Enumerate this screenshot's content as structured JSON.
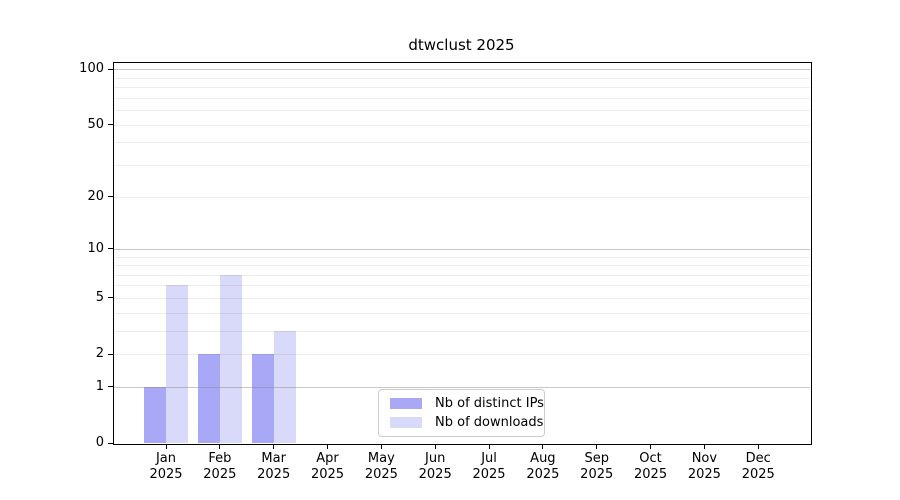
{
  "title": "dtwclust 2025",
  "colors": {
    "axis": "#000000",
    "background": "#ffffff",
    "grid_major": "#c6c6c6",
    "grid_minor": "#ececec",
    "legend_border": "#cccccc",
    "distinct_ips_bar": "#a8a8f6",
    "downloads_bar": "#d9d9fa"
  },
  "chart_data": {
    "type": "bar",
    "title": "dtwclust 2025",
    "categories": [
      "Jan 2025",
      "Feb 2025",
      "Mar 2025",
      "Apr 2025",
      "May 2025",
      "Jun 2025",
      "Jul 2025",
      "Aug 2025",
      "Sep 2025",
      "Oct 2025",
      "Nov 2025",
      "Dec 2025"
    ],
    "x_tick_months": [
      "Jan",
      "Feb",
      "Mar",
      "Apr",
      "May",
      "Jun",
      "Jul",
      "Aug",
      "Sep",
      "Oct",
      "Nov",
      "Dec"
    ],
    "x_tick_year": "2025",
    "series": [
      {
        "name": "Nb of distinct IPs",
        "color": "#a8a8f6",
        "values": [
          1,
          2,
          2,
          0,
          0,
          0,
          0,
          0,
          0,
          0,
          0,
          0
        ]
      },
      {
        "name": "Nb of downloads",
        "color": "#d9d9fa",
        "values": [
          6,
          7,
          3,
          0,
          0,
          0,
          0,
          0,
          0,
          0,
          0,
          0
        ]
      }
    ],
    "xlabel": "",
    "ylabel": "",
    "y_scale": "log10(1+y)",
    "y_ticks": [
      0,
      1,
      2,
      5,
      10,
      20,
      50,
      100
    ],
    "ylim": [
      0,
      110
    ],
    "grid": {
      "orientation": "horizontal",
      "major": [
        1,
        10,
        100
      ],
      "minor": [
        2,
        3,
        4,
        5,
        6,
        7,
        8,
        9,
        20,
        30,
        40,
        50,
        60,
        70,
        80,
        90
      ]
    },
    "legend_position": "lower center"
  }
}
